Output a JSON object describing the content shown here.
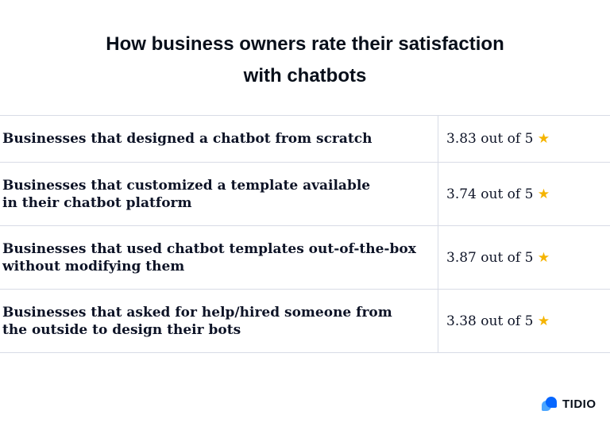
{
  "title_line1": "How business owners rate their satisfaction",
  "title_line2": "with chatbots",
  "rows": [
    {
      "label_line1": "Businesses that designed a chatbot from scratch",
      "label_line2": "",
      "rating": "3.83 out of 5",
      "icon": "star-icon"
    },
    {
      "label_line1": "Businesses that customized a template available",
      "label_line2": "in their chatbot platform",
      "rating": "3.74 out of 5",
      "icon": "star-icon"
    },
    {
      "label_line1": "Businesses that used chatbot templates out-of-the-box",
      "label_line2": "without modifying them",
      "rating": "3.87 out of 5",
      "icon": "star-icon"
    },
    {
      "label_line1": "Businesses that asked for help/hired someone from",
      "label_line2": "the outside to design their bots",
      "rating": "3.38 out of 5",
      "icon": "star-icon"
    }
  ],
  "brand": {
    "name": "TIDIO",
    "color": "#0566ff"
  },
  "star_color": "#f5b400"
}
